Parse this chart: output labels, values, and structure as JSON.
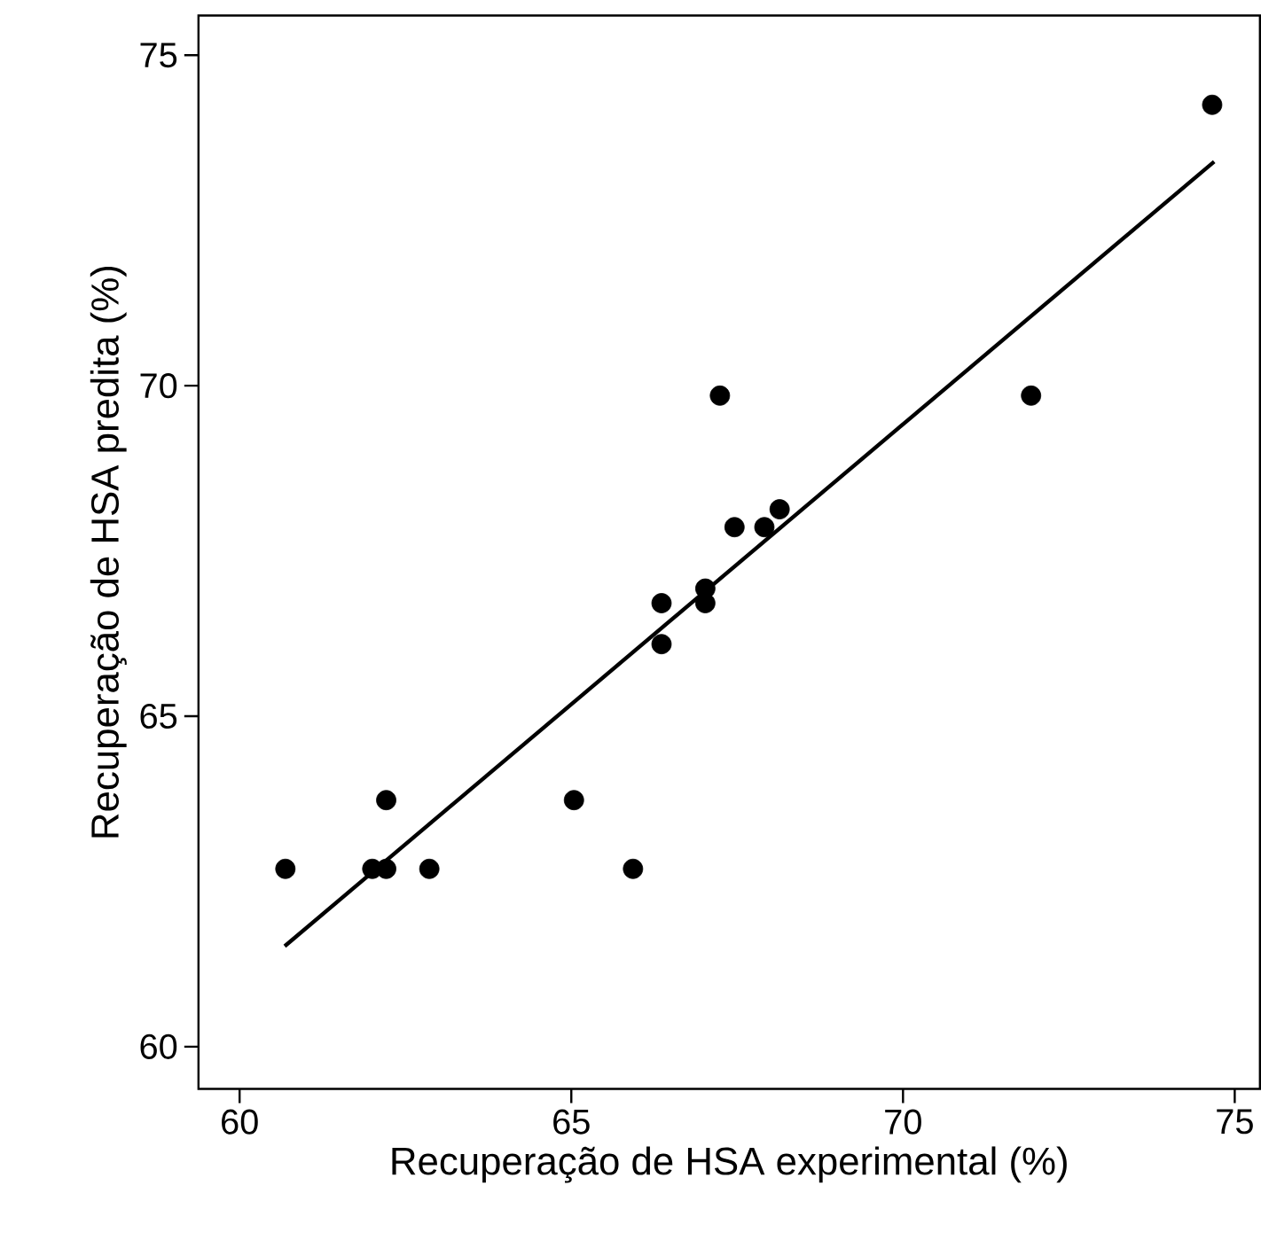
{
  "chart_data": {
    "type": "scatter",
    "xlabel": "Recuperação de HSA experimental (%)",
    "ylabel": "Recuperação de HSA predita (%)",
    "xlim": [
      59.38,
      75.38
    ],
    "ylim": [
      59.36,
      75.6
    ],
    "xticks": [
      60,
      65,
      70,
      75
    ],
    "yticks": [
      60,
      65,
      70,
      75
    ],
    "grid": false,
    "series": [
      {
        "marker": "circle",
        "color": "#000000",
        "x": [
          60.69,
          62.0,
          62.21,
          62.21,
          62.86,
          65.04,
          65.93,
          66.36,
          66.36,
          67.02,
          67.02,
          67.24,
          67.46,
          67.91,
          68.14,
          71.93,
          74.66
        ],
        "values": [
          62.69,
          62.69,
          62.69,
          63.73,
          62.69,
          63.73,
          62.69,
          66.71,
          66.09,
          66.71,
          66.93,
          69.85,
          67.86,
          67.86,
          68.13,
          69.85,
          74.25
        ]
      },
      {
        "type": "line",
        "marker": "none",
        "color": "#000000",
        "line_style": "solid",
        "x": [
          60.68,
          74.69
        ],
        "values": [
          61.52,
          73.39
        ]
      }
    ]
  }
}
